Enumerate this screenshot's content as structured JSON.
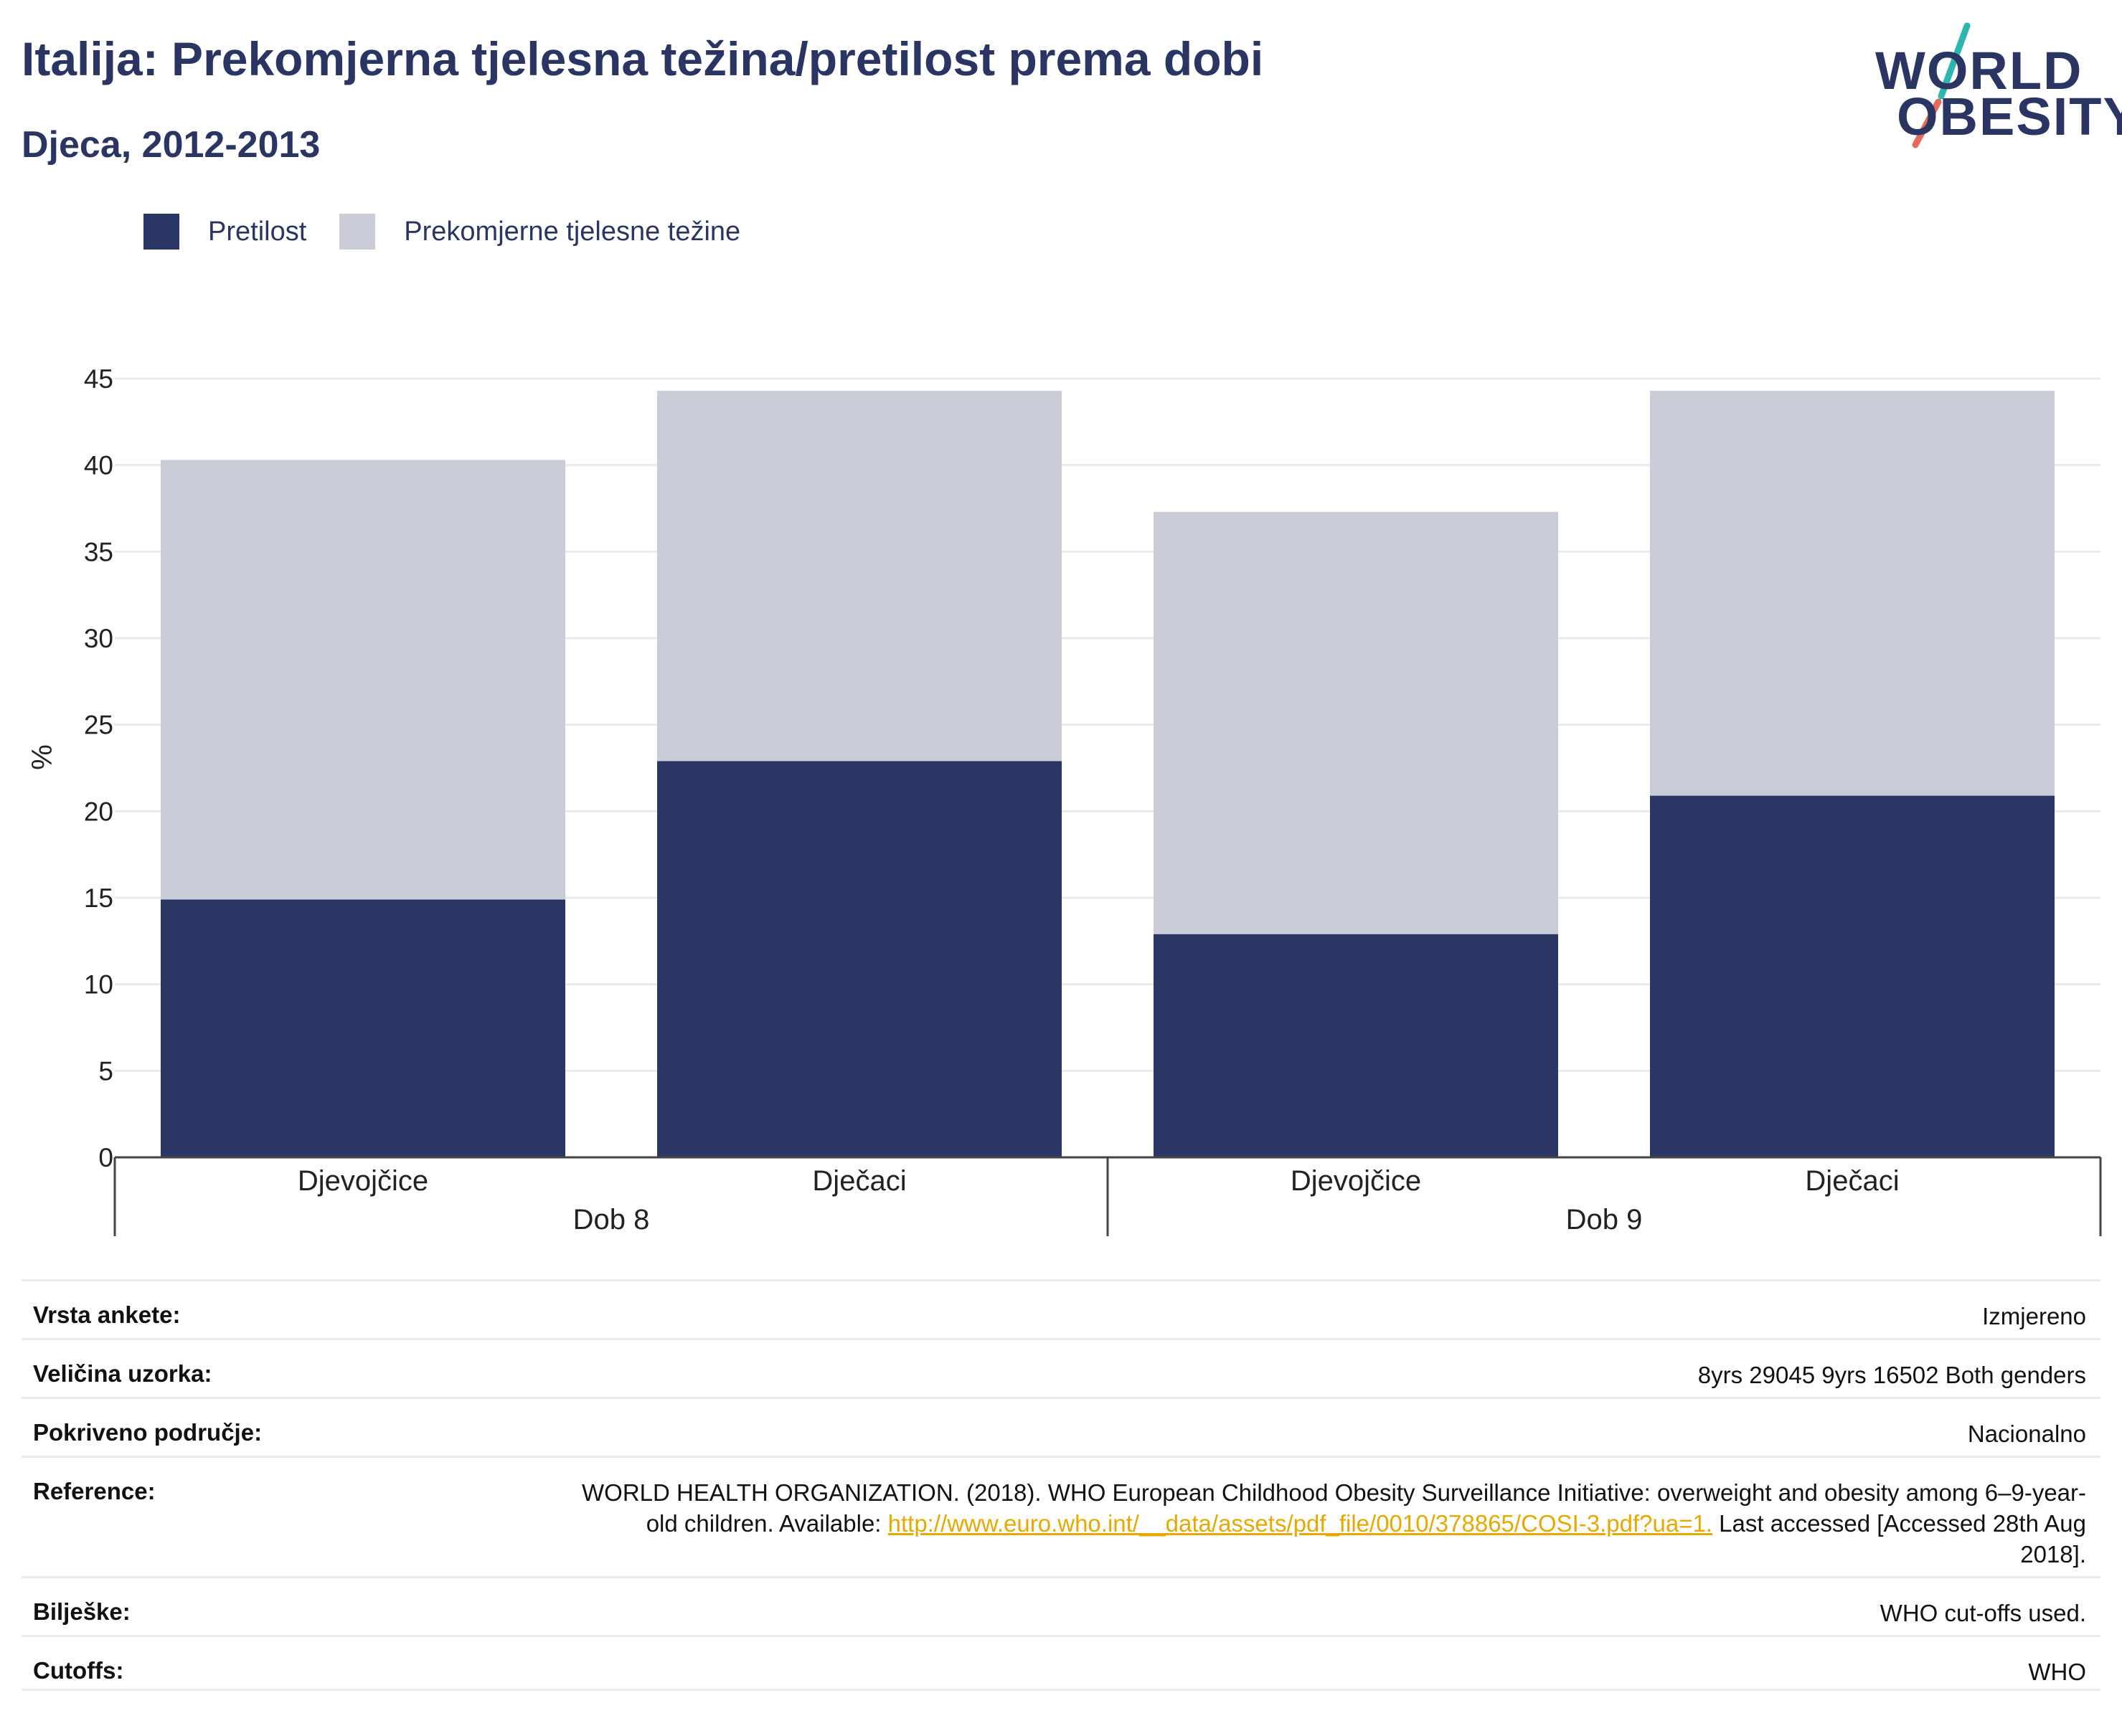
{
  "title": "Italija: Prekomjerna tjelesna težina/pretilost prema dobi",
  "subtitle": "Djeca, 2012-2013",
  "logo": {
    "line1": "WORLD",
    "line2": "OBESITY"
  },
  "colors": {
    "obesity": "#2a3663",
    "overweight": "#cacdd8",
    "text": "#2a3563",
    "link": "#e8a800"
  },
  "legend": [
    {
      "label": "Pretilost",
      "color": "#2a3663"
    },
    {
      "label": "Prekomjerne tjelesne težine",
      "color": "#cacdd8"
    }
  ],
  "chart_data": {
    "type": "bar",
    "stacked": true,
    "ylabel": "%",
    "ylim": [
      0,
      45
    ],
    "yticks": [
      0,
      5,
      10,
      15,
      20,
      25,
      30,
      35,
      40,
      45
    ],
    "grid": true,
    "legend_position": "top-left",
    "groups": [
      {
        "label": "Dob 8",
        "categories": [
          "Djevojčice",
          "Dječaci"
        ]
      },
      {
        "label": "Dob 9",
        "categories": [
          "Djevojčice",
          "Dječaci"
        ]
      }
    ],
    "categories": [
      "Djevojčice",
      "Dječaci",
      "Djevojčice",
      "Dječaci"
    ],
    "series": [
      {
        "name": "Pretilost",
        "values": [
          14.9,
          22.9,
          12.9,
          20.9
        ]
      },
      {
        "name": "Prekomjerne tjelesne težine",
        "values": [
          25.4,
          21.4,
          24.4,
          23.4
        ]
      }
    ]
  },
  "info": [
    {
      "label": "Vrsta ankete:",
      "value": "Izmjereno"
    },
    {
      "label": "Veličina uzorka:",
      "value": "8yrs 29045 9yrs 16502 Both genders"
    },
    {
      "label": "Pokriveno područje:",
      "value": "Nacionalno"
    },
    {
      "label": "Reference:",
      "value_pre": "WORLD HEALTH ORGANIZATION. (2018). WHO European Childhood Obesity Surveillance Initiative: overweight and obesity among 6–9-year-old children. Available: ",
      "link": "http://www.euro.who.int/__data/assets/pdf_file/0010/378865/COSI-3.pdf?ua=1.",
      "value_post": " Last accessed [Accessed 28th Aug 2018]."
    },
    {
      "label": "Bilješke:",
      "value": "WHO cut-offs used."
    },
    {
      "label": "Cutoffs:",
      "value": "WHO"
    }
  ]
}
